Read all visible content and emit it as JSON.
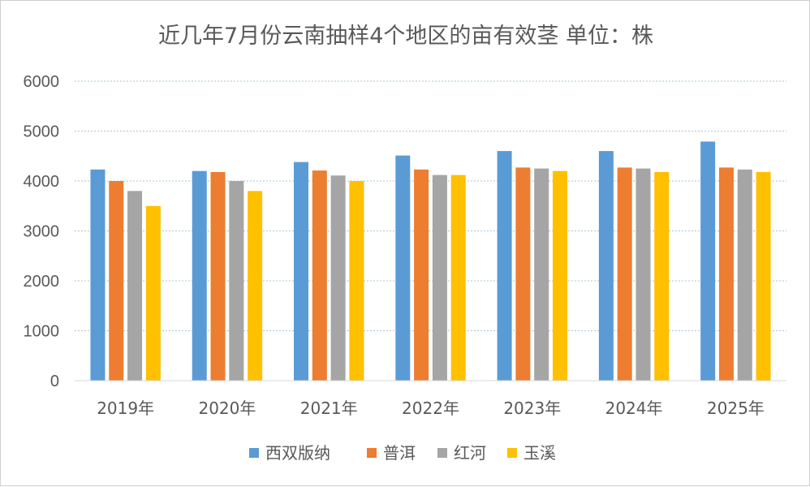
{
  "chart_data": {
    "type": "bar",
    "title": "近几年7月份云南抽样4个地区的亩有效茎  单位：株",
    "xlabel": "",
    "ylabel": "",
    "ylim": [
      0,
      6000
    ],
    "yticks": [
      "0",
      "1000",
      "2000",
      "3000",
      "4000",
      "5000",
      "6000"
    ],
    "grid": true,
    "legend_position": "bottom",
    "categories": [
      "2019年",
      "2020年",
      "2021年",
      "2022年",
      "2023年",
      "2024年",
      "2025年"
    ],
    "series": [
      {
        "name": "西双版纳",
        "color": "#5B9BD5",
        "values": [
          4230,
          4200,
          4380,
          4510,
          4600,
          4600,
          4790
        ]
      },
      {
        "name": "普洱",
        "color": "#ED7D31",
        "values": [
          4000,
          4180,
          4210,
          4230,
          4270,
          4270,
          4270
        ]
      },
      {
        "name": "红河",
        "color": "#A5A5A5",
        "values": [
          3800,
          4000,
          4110,
          4120,
          4250,
          4250,
          4230
        ]
      },
      {
        "name": "玉溪",
        "color": "#FFC000",
        "values": [
          3500,
          3800,
          4000,
          4120,
          4200,
          4180,
          4180
        ]
      }
    ]
  }
}
